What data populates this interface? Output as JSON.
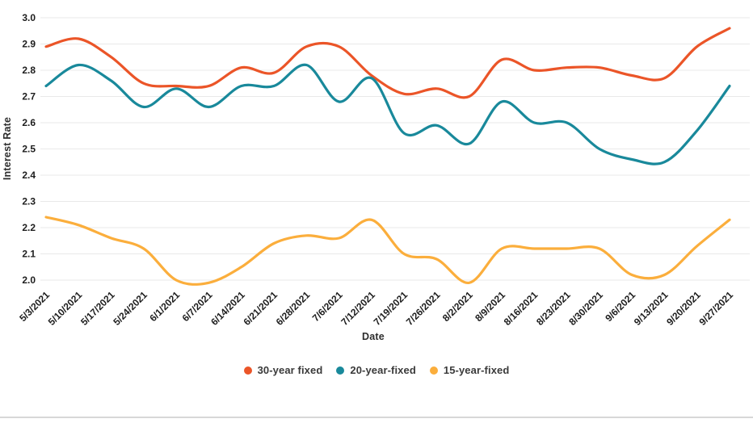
{
  "chart_data": {
    "type": "line",
    "title": "",
    "xlabel": "Date",
    "ylabel": "Interest Rate",
    "ylim": [
      2.0,
      3.0
    ],
    "grid": "horizontal",
    "legend_position": "bottom",
    "smooth_lines": true,
    "gridline_color": "#e9e9e9",
    "tick_label_color": "#1d1d1d",
    "y_ticks": [
      "3.0",
      "2.9",
      "2.8",
      "2.7",
      "2.6",
      "2.5",
      "2.4",
      "2.3",
      "2.2",
      "2.1",
      "2.0"
    ],
    "x_tick_labels": [
      "5/3/2021",
      "5/10/2021",
      "5/17/2021",
      "5/24/2021",
      "6/1/2021",
      "6/7/2021",
      "6/14/2021",
      "6/21/2021",
      "6/28/2021",
      "7/6/2021",
      "7/12/2021",
      "7/19/2021",
      "7/26/2021",
      "8/2/2021",
      "8/9/2021",
      "8/16/2021",
      "8/23/2021",
      "8/30/2021",
      "9/6/2021",
      "9/13/2021",
      "9/20/2021",
      "9/27/2021"
    ],
    "series": [
      {
        "name": "30-year fixed",
        "color": "#eb5528",
        "values": [
          2.89,
          2.92,
          2.85,
          2.75,
          2.74,
          2.74,
          2.81,
          2.79,
          2.89,
          2.89,
          2.78,
          2.71,
          2.73,
          2.7,
          2.84,
          2.8,
          2.81,
          2.81,
          2.78,
          2.77,
          2.89,
          2.96
        ]
      },
      {
        "name": "20-year-fixed",
        "color": "#19899b",
        "values": [
          2.74,
          2.82,
          2.76,
          2.66,
          2.73,
          2.66,
          2.74,
          2.74,
          2.82,
          2.68,
          2.77,
          2.56,
          2.59,
          2.52,
          2.68,
          2.6,
          2.6,
          2.5,
          2.46,
          2.45,
          2.57,
          2.74
        ]
      },
      {
        "name": "15-year-fixed",
        "color": "#fbae3c",
        "values": [
          2.24,
          2.21,
          2.16,
          2.12,
          2.0,
          1.99,
          2.05,
          2.14,
          2.17,
          2.16,
          2.23,
          2.1,
          2.08,
          1.99,
          2.12,
          2.12,
          2.12,
          2.12,
          2.02,
          2.02,
          2.13,
          2.23
        ]
      }
    ]
  }
}
